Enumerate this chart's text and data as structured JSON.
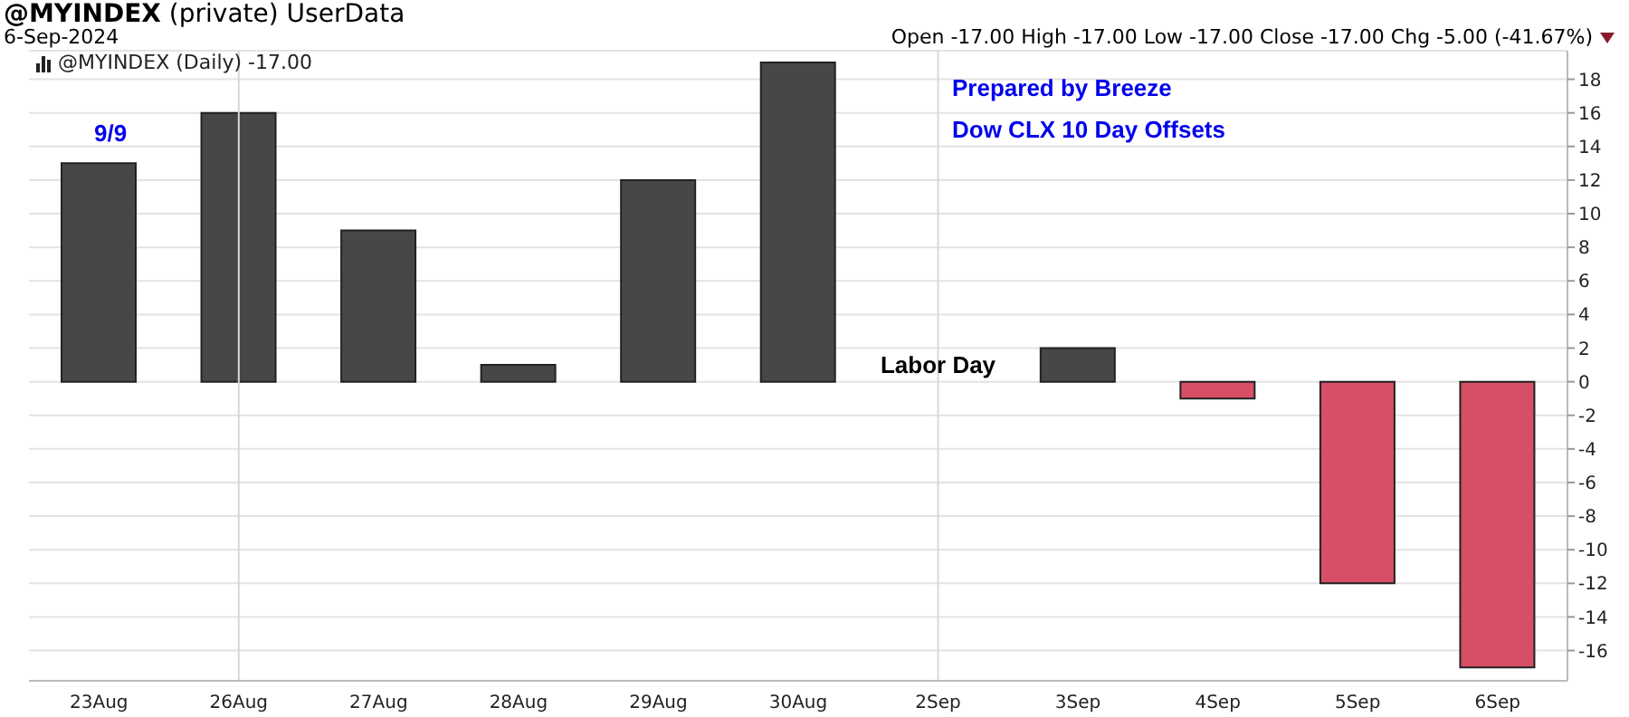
{
  "chart_data": {
    "type": "bar",
    "title": "@MYINDEX (private) UserData",
    "subtitle": "6-Sep-2024",
    "categories": [
      "23Aug",
      "26Aug",
      "27Aug",
      "28Aug",
      "29Aug",
      "30Aug",
      "2Sep",
      "3Sep",
      "4Sep",
      "5Sep",
      "6Sep"
    ],
    "values": [
      13,
      16,
      9,
      1,
      12,
      19,
      null,
      2,
      -1,
      -12,
      -17
    ],
    "colors": [
      "#474747",
      "#474747",
      "#474747",
      "#474747",
      "#474747",
      "#474747",
      "#474747",
      "#474747",
      "#d64f66",
      "#d64f66",
      "#d64f66"
    ],
    "ylim": [
      -17.8,
      19.7
    ],
    "yticks": [
      -16,
      -14,
      -12,
      -10,
      -8,
      -6,
      -4,
      -2,
      0,
      2,
      4,
      6,
      8,
      10,
      12,
      14,
      16,
      18
    ],
    "grid": "y",
    "ref_lines": [
      {
        "axis": "x",
        "value": "26Aug",
        "color": "#d8d8d8"
      },
      {
        "axis": "x",
        "value": "2Sep",
        "color": "#d8d8d8"
      }
    ],
    "annotations": [
      "9/9",
      {
        "text": "Labor Day",
        "x": "2Sep",
        "y": 1
      },
      "Prepared by Breeze",
      "Dow CLX 10 Day Offsets",
      "@MYINDEX (Daily) -17.00",
      "Open -17.00 High -17.00 Low -17.00 Close -17.00 Chg -5.00 (-41.67%)"
    ]
  }
}
